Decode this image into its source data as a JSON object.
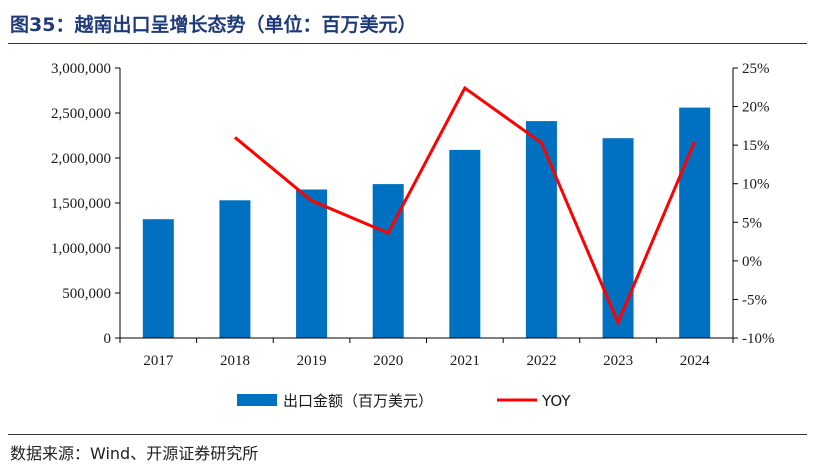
{
  "header": {
    "title": "图35：越南出口呈增长态势（单位：百万美元）"
  },
  "footer": {
    "source": "数据来源：Wind、开源证券研究所"
  },
  "chart_data": {
    "type": "bar",
    "categories": [
      "2017",
      "2018",
      "2019",
      "2020",
      "2021",
      "2022",
      "2023",
      "2024"
    ],
    "series": [
      {
        "name": "出口金额（百万美元）",
        "type": "bar",
        "axis": "left",
        "color": "#0070c0",
        "values": [
          1320000,
          1530000,
          1650000,
          1710000,
          2090000,
          2410000,
          2220000,
          2560000
        ]
      },
      {
        "name": "YOY",
        "type": "line",
        "axis": "right",
        "color": "#ff0000",
        "values": [
          null,
          16.0,
          7.8,
          3.6,
          22.4,
          15.3,
          -8.0,
          15.5
        ]
      }
    ],
    "ylim_left": [
      0,
      3000000
    ],
    "yticks_left": [
      "0",
      "500,000",
      "1,000,000",
      "1,500,000",
      "2,000,000",
      "2,500,000",
      "3,000,000"
    ],
    "ylim_right": [
      -10,
      25
    ],
    "yticks_right": [
      "-10%",
      "-5%",
      "0%",
      "5%",
      "10%",
      "15%",
      "20%",
      "25%"
    ],
    "legend": "bottom-center",
    "grid": false
  }
}
